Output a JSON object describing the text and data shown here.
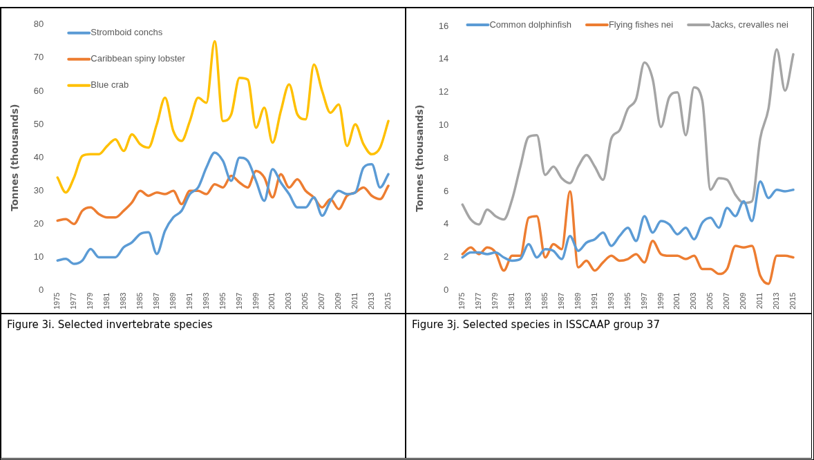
{
  "chart_data": [
    {
      "type": "line",
      "ylabel": "Tonnes (thousands)",
      "legend": "top left",
      "grid": false,
      "marker": "none",
      "line_style": "solid",
      "categories": [
        "1975",
        null,
        "1977",
        null,
        "1979",
        null,
        "1981",
        null,
        "1983",
        null,
        "1985",
        null,
        "1987",
        null,
        "1989",
        null,
        "1991",
        null,
        "1993",
        null,
        "1995",
        null,
        "1997",
        null,
        "1999",
        null,
        "2001",
        null,
        "2003",
        null,
        "2005",
        null,
        "2007",
        null,
        "2009",
        null,
        "2011",
        null,
        "2013",
        null,
        "2015"
      ],
      "ylim": [
        0,
        80
      ],
      "yticks": [
        0,
        10,
        20,
        30,
        40,
        50,
        60,
        70,
        80
      ],
      "annotations": [
        "Figure 3i. Selected invertebrate species"
      ],
      "series": [
        {
          "name": "Stromboid conchs",
          "color": "#5b9bd5",
          "values": [
            9,
            9.5,
            8,
            9,
            12.5,
            10,
            10,
            10,
            13,
            14.5,
            17,
            17.5,
            11,
            18,
            22,
            24,
            29,
            31,
            37,
            41.5,
            39,
            33,
            40,
            39,
            33,
            27,
            36.5,
            32.5,
            29,
            25,
            25,
            28,
            22.5,
            27,
            30,
            29,
            29.5,
            37,
            38,
            31,
            35
          ]
        },
        {
          "name": "Caribbean spiny lobster",
          "color": "#ed7d31",
          "values": [
            21,
            21.5,
            20,
            24,
            25,
            23,
            22,
            22,
            24,
            26.5,
            30,
            28.5,
            29.5,
            29,
            30,
            26,
            30,
            30,
            29,
            32,
            31,
            34.5,
            32.5,
            31,
            36,
            34,
            28,
            35,
            31,
            33.5,
            30,
            28,
            25,
            27.5,
            24.5,
            28.5,
            29.5,
            31,
            28.5,
            27.5,
            31.5
          ]
        },
        {
          "name": "Blue crab",
          "color": "#ffc000",
          "values": [
            34,
            29.5,
            34,
            40.5,
            41,
            41,
            43.5,
            45.5,
            42,
            47,
            44,
            43,
            50,
            58,
            48,
            45,
            51,
            58,
            56.5,
            75,
            51,
            53,
            64,
            63.5,
            49,
            55,
            44.5,
            54,
            62,
            53,
            51.5,
            68,
            60,
            53.5,
            56,
            43.5,
            50,
            44,
            41,
            43,
            51
          ]
        }
      ]
    },
    {
      "type": "line",
      "ylabel": "Tonnes (thousands)",
      "legend": "top",
      "grid": false,
      "marker": "none",
      "line_style": "solid",
      "categories": [
        "1975",
        null,
        "1977",
        null,
        "1979",
        null,
        "1981",
        null,
        "1983",
        null,
        "1985",
        null,
        "1987",
        null,
        "1989",
        null,
        "1991",
        null,
        "1993",
        null,
        "1995",
        null,
        "1997",
        null,
        "1999",
        null,
        "2001",
        null,
        "2003",
        null,
        "2005",
        null,
        "2007",
        null,
        "2009",
        null,
        "2011",
        null,
        "2013",
        null,
        "2015"
      ],
      "ylim": [
        0,
        16
      ],
      "yticks": [
        0,
        2,
        4,
        6,
        8,
        10,
        12,
        14,
        16
      ],
      "annotations": [
        "Figure 3j. Selected species in ISSCAAP group 37"
      ],
      "series": [
        {
          "name": "Common dolphinfish",
          "color": "#5b9bd5",
          "values": [
            2.0,
            2.3,
            2.3,
            2.2,
            2.3,
            2.0,
            1.8,
            1.9,
            2.8,
            2.0,
            2.5,
            2.4,
            1.9,
            3.3,
            2.4,
            2.9,
            3.1,
            3.5,
            2.7,
            3.3,
            3.8,
            3.0,
            4.5,
            3.5,
            4.2,
            4.0,
            3.4,
            3.8,
            3.1,
            4.1,
            4.4,
            3.8,
            5.0,
            4.5,
            5.4,
            4.2,
            6.6,
            5.6,
            6.1,
            6.0,
            6.1
          ]
        },
        {
          "name": "Flying fishes nei",
          "color": "#ed7d31",
          "values": [
            2.2,
            2.6,
            2.2,
            2.6,
            2.3,
            1.2,
            2.1,
            2.1,
            4.4,
            4.5,
            2.0,
            2.8,
            2.5,
            6.0,
            1.4,
            1.8,
            1.2,
            1.7,
            2.1,
            1.8,
            1.9,
            2.2,
            1.7,
            3.0,
            2.2,
            2.1,
            2.1,
            1.9,
            2.1,
            1.3,
            1.3,
            1.0,
            1.3,
            2.7,
            2.6,
            2.7,
            0.9,
            0.4,
            2.1,
            2.1,
            2.0
          ]
        },
        {
          "name": "Jacks, crevalles nei",
          "color": "#a5a5a5",
          "values": [
            5.2,
            4.3,
            4.0,
            4.9,
            4.5,
            4.3,
            5.5,
            7.5,
            9.3,
            9.4,
            7.0,
            7.5,
            6.8,
            6.5,
            7.5,
            8.2,
            7.5,
            6.7,
            9.2,
            9.7,
            11.0,
            11.6,
            13.8,
            12.8,
            9.9,
            11.7,
            12.0,
            9.4,
            12.3,
            11.5,
            6.1,
            6.8,
            6.7,
            5.8,
            5.3,
            5.4,
            9.2,
            11.0,
            14.6,
            12.1,
            14.3
          ]
        }
      ]
    }
  ]
}
